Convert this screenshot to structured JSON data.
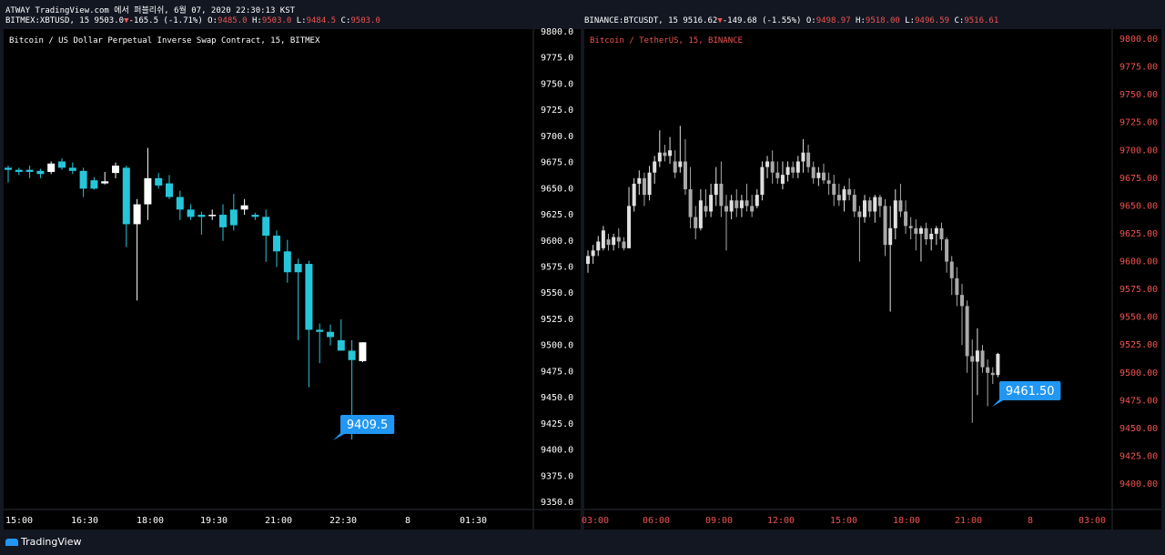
{
  "window": {
    "caption": "ATWAY TradingView.com 에서 퍼블리쉬, 6월 07, 2020 22:30:13 KST",
    "brand": "TradingView",
    "brand_icon": "tradingview-logo-icon"
  },
  "colors": {
    "accent": "#2196f3",
    "up": "#26c6da",
    "neutral": "#ffffff",
    "down_text": "#ef5350"
  },
  "panes": [
    {
      "legend": {
        "symbol": "BITMEX:XBTUSD, 15",
        "last": "9503.0",
        "change": "-165.5 (-1.71%)",
        "o": "9485.0",
        "h": "9503.0",
        "l": "9484.5",
        "c": "9503.0"
      },
      "title": "Bitcoin / US Dollar Perpetual Inverse Swap Contract, 15, BITMEX",
      "price_label": "9409.5",
      "axis_color": "#ffffff"
    },
    {
      "legend": {
        "symbol": "BINANCE:BTCUSDT, 15",
        "last": "9516.62",
        "change": "-149.68 (-1.55%)",
        "o": "9498.97",
        "h": "9518.00",
        "l": "9496.59",
        "c": "9516.61"
      },
      "title": "Bitcoin / TetherUS, 15, BINANCE",
      "price_label": "9461.50",
      "axis_color": "#ef5350"
    }
  ],
  "chart_data": [
    {
      "type": "candlestick",
      "title": "Bitcoin / US Dollar Perpetual Inverse Swap Contract, 15, BITMEX",
      "ylim": [
        9350,
        9800
      ],
      "yticks": [
        "9800.0",
        "9775.0",
        "9750.0",
        "9725.0",
        "9700.0",
        "9675.0",
        "9650.0",
        "9625.0",
        "9600.0",
        "9575.0",
        "9550.0",
        "9525.0",
        "9500.0",
        "9475.0",
        "9450.0",
        "9425.0",
        "9400.0",
        "9375.0",
        "9350.0"
      ],
      "xticks": [
        "15:00",
        "16:30",
        "18:00",
        "19:30",
        "21:00",
        "22:30",
        "8",
        "01:30"
      ],
      "candles": [
        {
          "o": 9670,
          "h": 9672,
          "l": 9656,
          "c": 9668
        },
        {
          "o": 9668,
          "h": 9670,
          "l": 9663,
          "c": 9666
        },
        {
          "o": 9668,
          "h": 9672,
          "l": 9660,
          "c": 9666
        },
        {
          "o": 9667,
          "h": 9669,
          "l": 9660,
          "c": 9664
        },
        {
          "o": 9666,
          "h": 9676,
          "l": 9664,
          "c": 9674
        },
        {
          "o": 9676,
          "h": 9679,
          "l": 9668,
          "c": 9670
        },
        {
          "o": 9670,
          "h": 9675,
          "l": 9664,
          "c": 9667
        },
        {
          "o": 9667,
          "h": 9670,
          "l": 9642,
          "c": 9650
        },
        {
          "o": 9658,
          "h": 9661,
          "l": 9649,
          "c": 9650
        },
        {
          "o": 9655,
          "h": 9666,
          "l": 9654,
          "c": 9657
        },
        {
          "o": 9665,
          "h": 9675,
          "l": 9660,
          "c": 9672
        },
        {
          "o": 9670,
          "h": 9672,
          "l": 9594,
          "c": 9616
        },
        {
          "o": 9616,
          "h": 9640,
          "l": 9543,
          "c": 9635
        },
        {
          "o": 9635,
          "h": 9689,
          "l": 9620,
          "c": 9660
        },
        {
          "o": 9660,
          "h": 9665,
          "l": 9650,
          "c": 9653
        },
        {
          "o": 9655,
          "h": 9663,
          "l": 9640,
          "c": 9642
        },
        {
          "o": 9642,
          "h": 9648,
          "l": 9620,
          "c": 9630
        },
        {
          "o": 9630,
          "h": 9635,
          "l": 9620,
          "c": 9623
        },
        {
          "o": 9625,
          "h": 9628,
          "l": 9606,
          "c": 9623
        },
        {
          "o": 9624,
          "h": 9630,
          "l": 9620,
          "c": 9625
        },
        {
          "o": 9625,
          "h": 9635,
          "l": 9600,
          "c": 9613
        },
        {
          "o": 9630,
          "h": 9645,
          "l": 9610,
          "c": 9615
        },
        {
          "o": 9630,
          "h": 9640,
          "l": 9625,
          "c": 9634
        },
        {
          "o": 9625,
          "h": 9627,
          "l": 9620,
          "c": 9623
        },
        {
          "o": 9623,
          "h": 9630,
          "l": 9580,
          "c": 9605
        },
        {
          "o": 9605,
          "h": 9610,
          "l": 9575,
          "c": 9590
        },
        {
          "o": 9590,
          "h": 9601,
          "l": 9560,
          "c": 9570
        },
        {
          "o": 9578,
          "h": 9583,
          "l": 9505,
          "c": 9570
        },
        {
          "o": 9578,
          "h": 9581,
          "l": 9460,
          "c": 9515
        },
        {
          "o": 9515,
          "h": 9521,
          "l": 9483,
          "c": 9513
        },
        {
          "o": 9513,
          "h": 9520,
          "l": 9500,
          "c": 9508
        },
        {
          "o": 9505,
          "h": 9525,
          "l": 9495,
          "c": 9495
        },
        {
          "o": 9495,
          "h": 9505,
          "l": 9410,
          "c": 9486
        },
        {
          "o": 9485,
          "h": 9503,
          "l": 9484,
          "c": 9503
        }
      ]
    },
    {
      "type": "candlestick",
      "title": "Bitcoin / TetherUS, 15, BINANCE",
      "ylim": [
        9385,
        9805
      ],
      "yticks": [
        "9800.00",
        "9775.00",
        "9750.00",
        "9725.00",
        "9700.00",
        "9675.00",
        "9650.00",
        "9625.00",
        "9600.00",
        "9575.00",
        "9550.00",
        "9525.00",
        "9500.00",
        "9475.00",
        "9450.00",
        "9425.00",
        "9400.00"
      ],
      "xticks": [
        "03:00",
        "06:00",
        "09:00",
        "12:00",
        "15:00",
        "18:00",
        "21:00",
        "8",
        "03:00"
      ],
      "candles": [
        {
          "o": 9598,
          "h": 9610,
          "l": 9590,
          "c": 9605
        },
        {
          "o": 9605,
          "h": 9615,
          "l": 9598,
          "c": 9610
        },
        {
          "o": 9610,
          "h": 9623,
          "l": 9605,
          "c": 9618
        },
        {
          "o": 9612,
          "h": 9632,
          "l": 9610,
          "c": 9628
        },
        {
          "o": 9620,
          "h": 9625,
          "l": 9610,
          "c": 9615
        },
        {
          "o": 9615,
          "h": 9625,
          "l": 9610,
          "c": 9622
        },
        {
          "o": 9622,
          "h": 9630,
          "l": 9612,
          "c": 9618
        },
        {
          "o": 9618,
          "h": 9622,
          "l": 9610,
          "c": 9612
        },
        {
          "o": 9612,
          "h": 9667,
          "l": 9612,
          "c": 9650
        },
        {
          "o": 9650,
          "h": 9675,
          "l": 9645,
          "c": 9670
        },
        {
          "o": 9670,
          "h": 9682,
          "l": 9660,
          "c": 9675
        },
        {
          "o": 9675,
          "h": 9680,
          "l": 9650,
          "c": 9660
        },
        {
          "o": 9660,
          "h": 9686,
          "l": 9655,
          "c": 9680
        },
        {
          "o": 9680,
          "h": 9695,
          "l": 9670,
          "c": 9690
        },
        {
          "o": 9690,
          "h": 9718,
          "l": 9685,
          "c": 9698
        },
        {
          "o": 9698,
          "h": 9705,
          "l": 9690,
          "c": 9695
        },
        {
          "o": 9695,
          "h": 9712,
          "l": 9688,
          "c": 9700
        },
        {
          "o": 9690,
          "h": 9700,
          "l": 9675,
          "c": 9680
        },
        {
          "o": 9685,
          "h": 9722,
          "l": 9680,
          "c": 9690
        },
        {
          "o": 9690,
          "h": 9710,
          "l": 9660,
          "c": 9665
        },
        {
          "o": 9665,
          "h": 9685,
          "l": 9630,
          "c": 9640
        },
        {
          "o": 9640,
          "h": 9650,
          "l": 9620,
          "c": 9630
        },
        {
          "o": 9630,
          "h": 9665,
          "l": 9628,
          "c": 9655
        },
        {
          "o": 9650,
          "h": 9665,
          "l": 9640,
          "c": 9645
        },
        {
          "o": 9645,
          "h": 9670,
          "l": 9640,
          "c": 9660
        },
        {
          "o": 9660,
          "h": 9685,
          "l": 9650,
          "c": 9670
        },
        {
          "o": 9670,
          "h": 9690,
          "l": 9640,
          "c": 9650
        },
        {
          "o": 9650,
          "h": 9660,
          "l": 9610,
          "c": 9645
        },
        {
          "o": 9645,
          "h": 9660,
          "l": 9638,
          "c": 9655
        },
        {
          "o": 9655,
          "h": 9665,
          "l": 9640,
          "c": 9648
        },
        {
          "o": 9648,
          "h": 9660,
          "l": 9640,
          "c": 9655
        },
        {
          "o": 9655,
          "h": 9670,
          "l": 9645,
          "c": 9650
        },
        {
          "o": 9650,
          "h": 9660,
          "l": 9640,
          "c": 9645
        },
        {
          "o": 9650,
          "h": 9665,
          "l": 9648,
          "c": 9660
        },
        {
          "o": 9660,
          "h": 9690,
          "l": 9655,
          "c": 9685
        },
        {
          "o": 9685,
          "h": 9695,
          "l": 9675,
          "c": 9690
        },
        {
          "o": 9690,
          "h": 9700,
          "l": 9670,
          "c": 9680
        },
        {
          "o": 9680,
          "h": 9690,
          "l": 9670,
          "c": 9675
        },
        {
          "o": 9670,
          "h": 9690,
          "l": 9665,
          "c": 9678
        },
        {
          "o": 9678,
          "h": 9690,
          "l": 9672,
          "c": 9685
        },
        {
          "o": 9685,
          "h": 9690,
          "l": 9675,
          "c": 9680
        },
        {
          "o": 9680,
          "h": 9695,
          "l": 9675,
          "c": 9690
        },
        {
          "o": 9690,
          "h": 9710,
          "l": 9680,
          "c": 9698
        },
        {
          "o": 9698,
          "h": 9705,
          "l": 9680,
          "c": 9685
        },
        {
          "o": 9685,
          "h": 9690,
          "l": 9670,
          "c": 9675
        },
        {
          "o": 9675,
          "h": 9685,
          "l": 9668,
          "c": 9680
        },
        {
          "o": 9680,
          "h": 9688,
          "l": 9670,
          "c": 9673
        },
        {
          "o": 9673,
          "h": 9680,
          "l": 9660,
          "c": 9670
        },
        {
          "o": 9670,
          "h": 9678,
          "l": 9650,
          "c": 9660
        },
        {
          "o": 9660,
          "h": 9670,
          "l": 9650,
          "c": 9655
        },
        {
          "o": 9655,
          "h": 9668,
          "l": 9645,
          "c": 9665
        },
        {
          "o": 9665,
          "h": 9675,
          "l": 9655,
          "c": 9660
        },
        {
          "o": 9660,
          "h": 9665,
          "l": 9640,
          "c": 9645
        },
        {
          "o": 9645,
          "h": 9650,
          "l": 9600,
          "c": 9640
        },
        {
          "o": 9640,
          "h": 9660,
          "l": 9635,
          "c": 9655
        },
        {
          "o": 9655,
          "h": 9658,
          "l": 9640,
          "c": 9645
        },
        {
          "o": 9645,
          "h": 9660,
          "l": 9635,
          "c": 9658
        },
        {
          "o": 9658,
          "h": 9660,
          "l": 9640,
          "c": 9650
        },
        {
          "o": 9650,
          "h": 9656,
          "l": 9605,
          "c": 9615
        },
        {
          "o": 9615,
          "h": 9650,
          "l": 9555,
          "c": 9630
        },
        {
          "o": 9630,
          "h": 9665,
          "l": 9620,
          "c": 9655
        },
        {
          "o": 9655,
          "h": 9670,
          "l": 9640,
          "c": 9645
        },
        {
          "o": 9645,
          "h": 9655,
          "l": 9625,
          "c": 9632
        },
        {
          "o": 9632,
          "h": 9640,
          "l": 9620,
          "c": 9630
        },
        {
          "o": 9630,
          "h": 9638,
          "l": 9610,
          "c": 9625
        },
        {
          "o": 9625,
          "h": 9632,
          "l": 9600,
          "c": 9630
        },
        {
          "o": 9630,
          "h": 9635,
          "l": 9615,
          "c": 9620
        },
        {
          "o": 9620,
          "h": 9630,
          "l": 9610,
          "c": 9625
        },
        {
          "o": 9625,
          "h": 9632,
          "l": 9615,
          "c": 9630
        },
        {
          "o": 9630,
          "h": 9635,
          "l": 9610,
          "c": 9620
        },
        {
          "o": 9620,
          "h": 9622,
          "l": 9590,
          "c": 9600
        },
        {
          "o": 9600,
          "h": 9605,
          "l": 9570,
          "c": 9585
        },
        {
          "o": 9585,
          "h": 9595,
          "l": 9560,
          "c": 9570
        },
        {
          "o": 9570,
          "h": 9580,
          "l": 9525,
          "c": 9560
        },
        {
          "o": 9560,
          "h": 9565,
          "l": 9500,
          "c": 9515
        },
        {
          "o": 9515,
          "h": 9530,
          "l": 9455,
          "c": 9510
        },
        {
          "o": 9510,
          "h": 9540,
          "l": 9480,
          "c": 9520
        },
        {
          "o": 9520,
          "h": 9525,
          "l": 9500,
          "c": 9505
        },
        {
          "o": 9505,
          "h": 9512,
          "l": 9470,
          "c": 9500
        },
        {
          "o": 9500,
          "h": 9505,
          "l": 9490,
          "c": 9498
        },
        {
          "o": 9498,
          "h": 9518,
          "l": 9496,
          "c": 9517
        }
      ]
    }
  ]
}
